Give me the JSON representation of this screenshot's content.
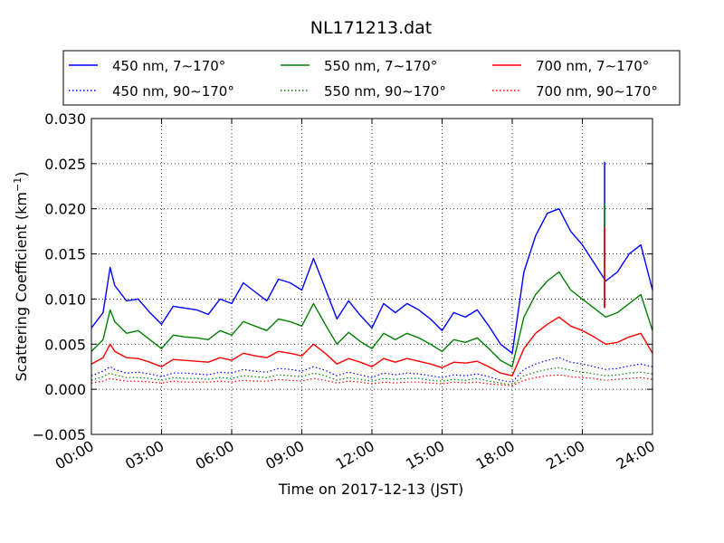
{
  "chart_data": {
    "type": "line",
    "title": "NL171213.dat",
    "xlabel": "Time on 2017-12-13 (JST)",
    "ylabel": "Scattering Coefficient (km",
    "ylabel_sup": "−1",
    "ylabel_close": ")",
    "x_unit": "hour",
    "xlim": [
      0,
      24
    ],
    "ylim": [
      -0.005,
      0.03
    ],
    "grid": true,
    "legend_position": "top (above plot, 3 columns)",
    "xticks": [
      0,
      3,
      6,
      9,
      12,
      15,
      18,
      21,
      24
    ],
    "xtick_labels": [
      "00:00",
      "03:00",
      "06:00",
      "09:00",
      "12:00",
      "15:00",
      "18:00",
      "21:00",
      "24:00"
    ],
    "yticks": [
      -0.005,
      0.0,
      0.005,
      0.01,
      0.015,
      0.02,
      0.025,
      0.03
    ],
    "ytick_labels": [
      "−0.005",
      "0.000",
      "0.005",
      "0.010",
      "0.015",
      "0.020",
      "0.025",
      "0.030"
    ],
    "x": [
      0,
      0.5,
      0.8,
      1,
      1.5,
      2,
      2.5,
      3,
      3.5,
      4,
      4.5,
      5,
      5.5,
      6,
      6.5,
      7,
      7.5,
      8,
      8.5,
      9,
      9.5,
      10,
      10.5,
      11,
      11.5,
      12,
      12.5,
      13,
      13.5,
      14,
      14.5,
      15,
      15.5,
      16,
      16.5,
      17,
      17.5,
      18,
      18.5,
      19,
      19.5,
      20,
      20.5,
      21,
      21.5,
      22,
      22.5,
      23,
      23.5,
      24
    ],
    "series": [
      {
        "name": "450 nm, 7∼170°",
        "color": "#0000ff",
        "style": "solid",
        "values": [
          0.0068,
          0.0085,
          0.0135,
          0.0115,
          0.0098,
          0.01,
          0.0085,
          0.0072,
          0.0092,
          0.009,
          0.0088,
          0.0083,
          0.01,
          0.0095,
          0.0118,
          0.0108,
          0.0098,
          0.0122,
          0.0118,
          0.011,
          0.0145,
          0.0112,
          0.0078,
          0.0098,
          0.0082,
          0.0068,
          0.0095,
          0.0085,
          0.0095,
          0.0088,
          0.0078,
          0.0065,
          0.0085,
          0.008,
          0.0088,
          0.007,
          0.005,
          0.004,
          0.013,
          0.017,
          0.0195,
          0.02,
          0.0175,
          0.016,
          0.014,
          0.012,
          0.013,
          0.015,
          0.016,
          0.011
        ]
      },
      {
        "name": "550 nm, 7∼170°",
        "color": "#008000",
        "style": "solid",
        "values": [
          0.0042,
          0.0055,
          0.0088,
          0.0075,
          0.0062,
          0.0065,
          0.0055,
          0.0045,
          0.006,
          0.0058,
          0.0057,
          0.0055,
          0.0065,
          0.006,
          0.0075,
          0.007,
          0.0065,
          0.0078,
          0.0075,
          0.007,
          0.0095,
          0.0072,
          0.005,
          0.0063,
          0.0053,
          0.0045,
          0.0062,
          0.0055,
          0.0062,
          0.0057,
          0.005,
          0.0042,
          0.0055,
          0.0052,
          0.0057,
          0.0045,
          0.0032,
          0.0025,
          0.008,
          0.0105,
          0.012,
          0.013,
          0.011,
          0.01,
          0.009,
          0.008,
          0.0085,
          0.0095,
          0.0105,
          0.0065
        ]
      },
      {
        "name": "700 nm, 7∼170°",
        "color": "#ff0000",
        "style": "solid",
        "values": [
          0.0028,
          0.0035,
          0.005,
          0.0042,
          0.0035,
          0.0034,
          0.003,
          0.0025,
          0.0033,
          0.0032,
          0.0031,
          0.003,
          0.0035,
          0.0032,
          0.004,
          0.0037,
          0.0035,
          0.0042,
          0.004,
          0.0037,
          0.005,
          0.004,
          0.0028,
          0.0034,
          0.003,
          0.0025,
          0.0034,
          0.003,
          0.0034,
          0.0031,
          0.0028,
          0.0024,
          0.003,
          0.0029,
          0.0031,
          0.0025,
          0.0018,
          0.0015,
          0.0045,
          0.0062,
          0.0072,
          0.008,
          0.007,
          0.0065,
          0.0058,
          0.005,
          0.0052,
          0.0058,
          0.0062,
          0.004
        ]
      },
      {
        "name": "450 nm, 90∼170°",
        "color": "#0000ff",
        "style": "dotted",
        "values": [
          0.0015,
          0.002,
          0.0025,
          0.0022,
          0.0018,
          0.0019,
          0.0017,
          0.0014,
          0.0018,
          0.0018,
          0.0017,
          0.0016,
          0.0019,
          0.0018,
          0.0022,
          0.002,
          0.0019,
          0.0023,
          0.0022,
          0.002,
          0.0025,
          0.0021,
          0.0015,
          0.0019,
          0.0016,
          0.0013,
          0.0018,
          0.0016,
          0.0018,
          0.0017,
          0.0015,
          0.0013,
          0.0016,
          0.0015,
          0.0017,
          0.0014,
          0.001,
          0.0008,
          0.0022,
          0.0028,
          0.0032,
          0.0035,
          0.003,
          0.0028,
          0.0025,
          0.0022,
          0.0023,
          0.0026,
          0.0028,
          0.0025
        ]
      },
      {
        "name": "550 nm, 90∼170°",
        "color": "#008000",
        "style": "dotted",
        "values": [
          0.001,
          0.0014,
          0.0018,
          0.0016,
          0.0013,
          0.0013,
          0.0012,
          0.001,
          0.0013,
          0.0012,
          0.0012,
          0.0011,
          0.0013,
          0.0012,
          0.0015,
          0.0014,
          0.0013,
          0.0016,
          0.0015,
          0.0014,
          0.0018,
          0.0015,
          0.001,
          0.0013,
          0.0011,
          0.0009,
          0.0012,
          0.0011,
          0.0012,
          0.0012,
          0.001,
          0.0009,
          0.0011,
          0.001,
          0.0012,
          0.0009,
          0.0007,
          0.0005,
          0.0015,
          0.0019,
          0.0022,
          0.0024,
          0.0021,
          0.0019,
          0.0017,
          0.0015,
          0.0016,
          0.0018,
          0.0019,
          0.0017
        ]
      },
      {
        "name": "700 nm, 90∼170°",
        "color": "#ff0000",
        "style": "dotted",
        "values": [
          0.0007,
          0.0009,
          0.0012,
          0.0011,
          0.0009,
          0.0009,
          0.0008,
          0.0007,
          0.0009,
          0.0008,
          0.0008,
          0.0008,
          0.0009,
          0.0008,
          0.001,
          0.0009,
          0.0009,
          0.0011,
          0.001,
          0.0009,
          0.0012,
          0.001,
          0.0007,
          0.0009,
          0.0008,
          0.0006,
          0.0008,
          0.0007,
          0.0008,
          0.0008,
          0.0007,
          0.0006,
          0.0008,
          0.0007,
          0.0008,
          0.0006,
          0.0005,
          0.0004,
          0.001,
          0.0013,
          0.0015,
          0.0016,
          0.0014,
          0.0013,
          0.0012,
          0.001,
          0.0011,
          0.0012,
          0.0013,
          0.0011
        ]
      }
    ],
    "annotations": [
      {
        "type": "spike",
        "x": 21.95,
        "series": "450 nm, 7∼170°",
        "peak": 0.0252
      },
      {
        "type": "spike",
        "x": 21.95,
        "series": "550 nm, 7∼170°",
        "peak": 0.0205
      },
      {
        "type": "spike",
        "x": 21.95,
        "series": "700 nm, 7∼170°",
        "peak": 0.018
      }
    ]
  }
}
